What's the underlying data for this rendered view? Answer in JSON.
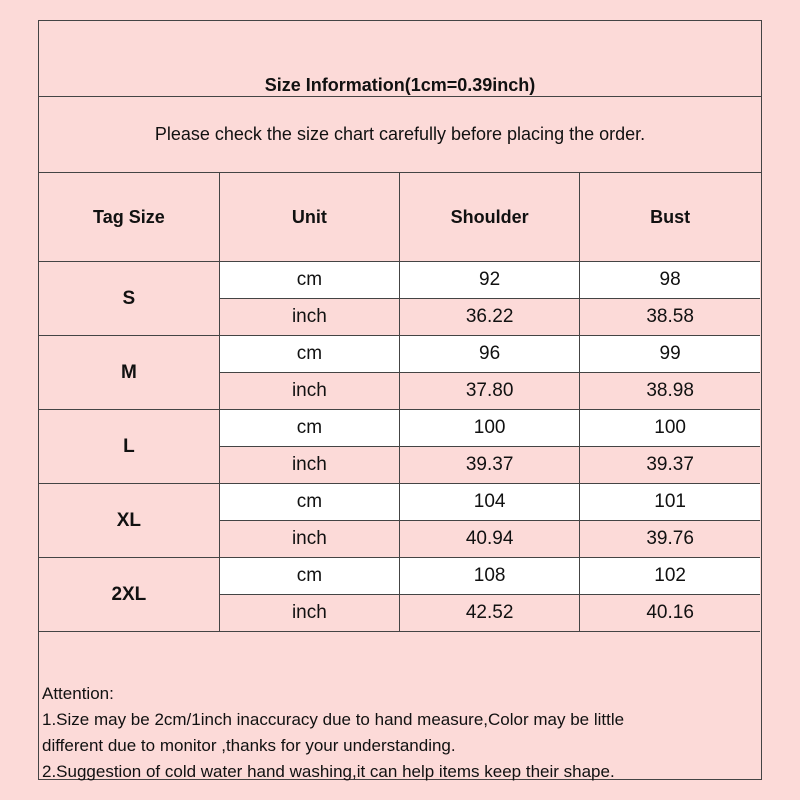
{
  "title": "Size Information(1cm=0.39inch)",
  "note": "Please check the size chart carefully before placing the order.",
  "headers": [
    "Tag Size",
    "Unit",
    "Shoulder",
    "Bust"
  ],
  "rows": [
    {
      "size": "S",
      "cm": {
        "unit": "cm",
        "shoulder": "92",
        "bust": "98"
      },
      "inch": {
        "unit": "inch",
        "shoulder": "36.22",
        "bust": "38.58"
      }
    },
    {
      "size": "M",
      "cm": {
        "unit": "cm",
        "shoulder": "96",
        "bust": "99"
      },
      "inch": {
        "unit": "inch",
        "shoulder": "37.80",
        "bust": "38.98"
      }
    },
    {
      "size": "L",
      "cm": {
        "unit": "cm",
        "shoulder": "100",
        "bust": "100"
      },
      "inch": {
        "unit": "inch",
        "shoulder": "39.37",
        "bust": "39.37"
      }
    },
    {
      "size": "XL",
      "cm": {
        "unit": "cm",
        "shoulder": "104",
        "bust": "101"
      },
      "inch": {
        "unit": "inch",
        "shoulder": "40.94",
        "bust": "39.76"
      }
    },
    {
      "size": "2XL",
      "cm": {
        "unit": "cm",
        "shoulder": "108",
        "bust": "102"
      },
      "inch": {
        "unit": "inch",
        "shoulder": "42.52",
        "bust": "40.16"
      }
    }
  ],
  "attention": [
    "Attention:",
    "1.Size may be 2cm/1inch inaccuracy due to hand measure,Color may be little",
    "different due to monitor ,thanks for your understanding.",
    "2.Suggestion of cold water hand washing,it can help items keep their shape."
  ],
  "colors": {
    "background": "#fcdad8",
    "cm_row": "#ffffff",
    "border": "#444444"
  }
}
